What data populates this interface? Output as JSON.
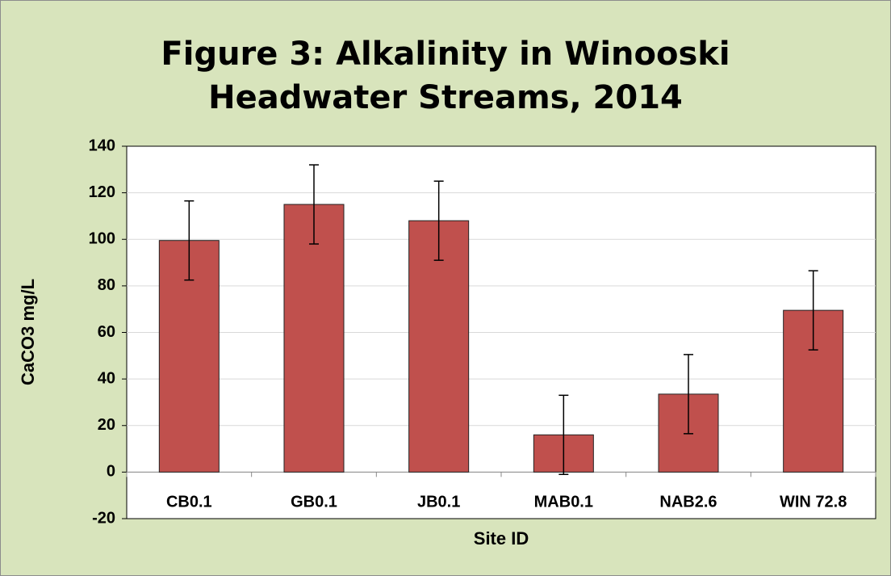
{
  "chart_data": {
    "type": "bar",
    "title": "Figure 3: Alkalinity in Winooski Headwater Streams, 2014",
    "x_label": "Site ID",
    "y_label": "CaCO3 mg/L",
    "categories": [
      "CB0.1",
      "GB0.1",
      "JB0.1",
      "MAB0.1",
      "NAB2.6",
      "WIN 72.8"
    ],
    "values": [
      99.5,
      115,
      108,
      16,
      33.5,
      69.5
    ],
    "errors": [
      17,
      17,
      17,
      17,
      17,
      17
    ],
    "color": "#c0504d",
    "ylim": [
      -20,
      140
    ],
    "yticks": [
      -20,
      0,
      20,
      40,
      60,
      80,
      100,
      120,
      140
    ],
    "grid": true
  }
}
